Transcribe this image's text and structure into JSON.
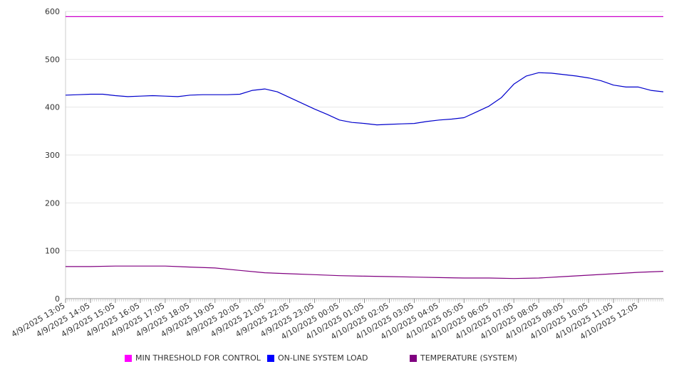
{
  "chart_data": {
    "type": "line",
    "y_ticks": [
      0,
      100,
      200,
      300,
      400,
      500,
      600
    ],
    "ylim": [
      0,
      600
    ],
    "x_ticks": [
      "4/9/2025 13:05",
      "4/9/2025 14:05",
      "4/9/2025 15:05",
      "4/9/2025 16:05",
      "4/9/2025 17:05",
      "4/9/2025 18:05",
      "4/9/2025 19:05",
      "4/9/2025 20:05",
      "4/9/2025 21:05",
      "4/9/2025 22:05",
      "4/9/2025 23:05",
      "4/10/2025 00:05",
      "4/10/2025 01:05",
      "4/10/2025 02:05",
      "4/10/2025 03:05",
      "4/10/2025 04:05",
      "4/10/2025 05:05",
      "4/10/2025 06:05",
      "4/10/2025 07:05",
      "4/10/2025 08:05",
      "4/10/2025 09:05",
      "4/10/2025 10:05",
      "4/10/2025 11:05",
      "4/10/2025 12:05"
    ],
    "x_end": "4/10/2025 13:05",
    "grid": true,
    "legend_position": "bottom",
    "series": [
      {
        "name": "MIN THRESHOLD FOR CONTROL",
        "color": "#cc00cc",
        "points": [
          [
            "4/9/2025 13:05",
            589
          ],
          [
            "4/10/2025 13:05",
            589
          ]
        ]
      },
      {
        "name": "ON-LINE SYSTEM LOAD",
        "color": "#0000cc",
        "points": [
          [
            "4/9/2025 13:05",
            425
          ],
          [
            "4/9/2025 13:35",
            426
          ],
          [
            "4/9/2025 14:05",
            427
          ],
          [
            "4/9/2025 14:35",
            427
          ],
          [
            "4/9/2025 15:05",
            424
          ],
          [
            "4/9/2025 15:35",
            422
          ],
          [
            "4/9/2025 16:05",
            423
          ],
          [
            "4/9/2025 16:35",
            424
          ],
          [
            "4/9/2025 17:05",
            423
          ],
          [
            "4/9/2025 17:35",
            422
          ],
          [
            "4/9/2025 18:05",
            425
          ],
          [
            "4/9/2025 18:35",
            426
          ],
          [
            "4/9/2025 19:05",
            426
          ],
          [
            "4/9/2025 19:35",
            426
          ],
          [
            "4/9/2025 20:05",
            427
          ],
          [
            "4/9/2025 20:35",
            435
          ],
          [
            "4/9/2025 21:05",
            438
          ],
          [
            "4/9/2025 21:35",
            432
          ],
          [
            "4/9/2025 22:05",
            420
          ],
          [
            "4/9/2025 22:35",
            408
          ],
          [
            "4/9/2025 23:05",
            396
          ],
          [
            "4/9/2025 23:35",
            385
          ],
          [
            "4/10/2025 00:05",
            373
          ],
          [
            "4/10/2025 00:35",
            368
          ],
          [
            "4/10/2025 01:05",
            366
          ],
          [
            "4/10/2025 01:35",
            363
          ],
          [
            "4/10/2025 02:05",
            364
          ],
          [
            "4/10/2025 02:35",
            365
          ],
          [
            "4/10/2025 03:05",
            366
          ],
          [
            "4/10/2025 03:35",
            370
          ],
          [
            "4/10/2025 04:05",
            373
          ],
          [
            "4/10/2025 04:35",
            375
          ],
          [
            "4/10/2025 05:05",
            378
          ],
          [
            "4/10/2025 05:35",
            390
          ],
          [
            "4/10/2025 06:05",
            402
          ],
          [
            "4/10/2025 06:35",
            420
          ],
          [
            "4/10/2025 07:05",
            448
          ],
          [
            "4/10/2025 07:35",
            465
          ],
          [
            "4/10/2025 08:05",
            472
          ],
          [
            "4/10/2025 08:35",
            471
          ],
          [
            "4/10/2025 09:05",
            468
          ],
          [
            "4/10/2025 09:35",
            465
          ],
          [
            "4/10/2025 10:05",
            461
          ],
          [
            "4/10/2025 10:35",
            455
          ],
          [
            "4/10/2025 11:05",
            446
          ],
          [
            "4/10/2025 11:35",
            442
          ],
          [
            "4/10/2025 12:05",
            442
          ],
          [
            "4/10/2025 12:35",
            435
          ],
          [
            "4/10/2025 13:05",
            432
          ]
        ]
      },
      {
        "name": "TEMPERATURE (SYSTEM)",
        "color": "#800080",
        "points": [
          [
            "4/9/2025 13:05",
            67
          ],
          [
            "4/9/2025 14:05",
            67
          ],
          [
            "4/9/2025 15:05",
            68
          ],
          [
            "4/9/2025 16:05",
            68
          ],
          [
            "4/9/2025 17:05",
            68
          ],
          [
            "4/9/2025 18:05",
            66
          ],
          [
            "4/9/2025 19:05",
            64
          ],
          [
            "4/9/2025 20:05",
            59
          ],
          [
            "4/9/2025 21:05",
            54
          ],
          [
            "4/9/2025 22:05",
            52
          ],
          [
            "4/9/2025 23:05",
            50
          ],
          [
            "4/10/2025 00:05",
            48
          ],
          [
            "4/10/2025 01:05",
            47
          ],
          [
            "4/10/2025 02:05",
            46
          ],
          [
            "4/10/2025 03:05",
            45
          ],
          [
            "4/10/2025 04:05",
            44
          ],
          [
            "4/10/2025 05:05",
            43
          ],
          [
            "4/10/2025 06:05",
            43
          ],
          [
            "4/10/2025 07:05",
            42
          ],
          [
            "4/10/2025 08:05",
            43
          ],
          [
            "4/10/2025 09:05",
            46
          ],
          [
            "4/10/2025 10:05",
            49
          ],
          [
            "4/10/2025 11:05",
            52
          ],
          [
            "4/10/2025 12:05",
            55
          ],
          [
            "4/10/2025 13:05",
            57
          ]
        ]
      }
    ]
  }
}
